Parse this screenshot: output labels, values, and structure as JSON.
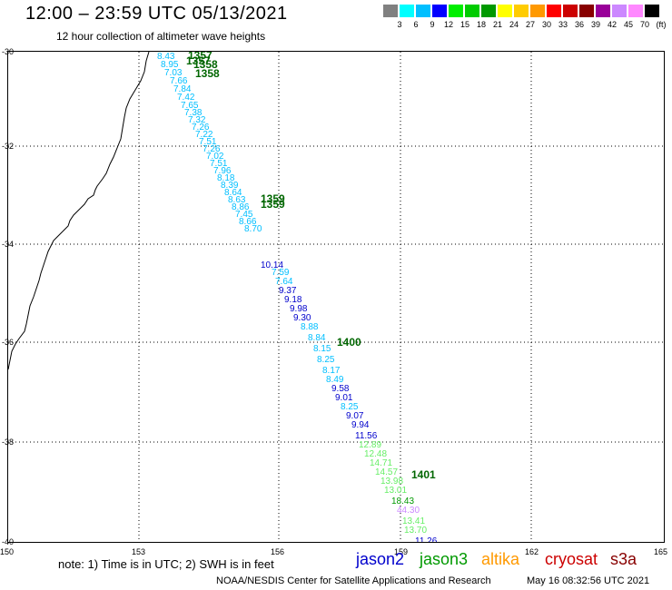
{
  "header": {
    "title": "12:00 – 23:59 UTC 05/13/2021",
    "subtitle": "12 hour collection of altimeter wave heights"
  },
  "legend": {
    "colors": [
      "#808080",
      "#00ffff",
      "#00bfff",
      "#0000ff",
      "#00ee00",
      "#00cc00",
      "#009900",
      "#ffff00",
      "#ffcc00",
      "#ff9900",
      "#ff0000",
      "#cc0000",
      "#880000",
      "#990099",
      "#cc88ff",
      "#ff88ff",
      "#000000"
    ],
    "labels": [
      "3",
      "6",
      "9",
      "12",
      "15",
      "18",
      "21",
      "24",
      "27",
      "30",
      "33",
      "36",
      "39",
      "42",
      "45",
      "70"
    ],
    "unit": "(ft)"
  },
  "map": {
    "lat_labels": [
      "-30",
      "-32",
      "-34",
      "-36",
      "-38",
      "-40"
    ],
    "lon_labels": [
      "150",
      "153",
      "156",
      "159",
      "162",
      "165"
    ]
  },
  "wave_obs": [
    {
      "t": "8.43",
      "c": "#00bfff"
    },
    {
      "t": "8.95",
      "c": "#00bfff"
    },
    {
      "t": "7.03",
      "c": "#00bfff"
    },
    {
      "t": "7.66",
      "c": "#00bfff"
    },
    {
      "t": "7.84",
      "c": "#00bfff"
    },
    {
      "t": "7.42",
      "c": "#00bfff"
    },
    {
      "t": "7.65",
      "c": "#00bfff"
    },
    {
      "t": "7.38",
      "c": "#00bfff"
    },
    {
      "t": "7.32",
      "c": "#00bfff"
    },
    {
      "t": "7.26",
      "c": "#00bfff"
    },
    {
      "t": "7.22",
      "c": "#00bfff"
    },
    {
      "t": "7.51",
      "c": "#00bfff"
    },
    {
      "t": "7.26",
      "c": "#00bfff"
    },
    {
      "t": "7.02",
      "c": "#00bfff"
    },
    {
      "t": "7.51",
      "c": "#00bfff"
    },
    {
      "t": "7.96",
      "c": "#00bfff"
    },
    {
      "t": "8.18",
      "c": "#00bfff"
    },
    {
      "t": "8.39",
      "c": "#00bfff"
    },
    {
      "t": "8.64",
      "c": "#00bfff"
    },
    {
      "t": "8.63",
      "c": "#00bfff"
    },
    {
      "t": "8.86",
      "c": "#00bfff"
    },
    {
      "t": "7.45",
      "c": "#00bfff"
    },
    {
      "t": "8.66",
      "c": "#00bfff"
    },
    {
      "t": "8.70",
      "c": "#00bfff"
    },
    {
      "t": "10.14",
      "c": "#0000cc"
    },
    {
      "t": "7.59",
      "c": "#00bfff"
    },
    {
      "t": "7.64",
      "c": "#00bfff"
    },
    {
      "t": "9.37",
      "c": "#0000cc"
    },
    {
      "t": "9.18",
      "c": "#0000cc"
    },
    {
      "t": "9.98",
      "c": "#0000cc"
    },
    {
      "t": "9.30",
      "c": "#0000cc"
    },
    {
      "t": "8.88",
      "c": "#00bfff"
    },
    {
      "t": "8.84",
      "c": "#00bfff"
    },
    {
      "t": "8.15",
      "c": "#00bfff"
    },
    {
      "t": "8.25",
      "c": "#00bfff"
    },
    {
      "t": "8.17",
      "c": "#00bfff"
    },
    {
      "t": "8.49",
      "c": "#00bfff"
    },
    {
      "t": "9.58",
      "c": "#0000cc"
    },
    {
      "t": "9.01",
      "c": "#0000cc"
    },
    {
      "t": "8.25",
      "c": "#00bfff"
    },
    {
      "t": "9.07",
      "c": "#0000cc"
    },
    {
      "t": "9.94",
      "c": "#0000cc"
    },
    {
      "t": "11.56",
      "c": "#0000cc"
    },
    {
      "t": "12.89",
      "c": "#66ee66"
    },
    {
      "t": "12.48",
      "c": "#66ee66"
    },
    {
      "t": "14.71",
      "c": "#66ee66"
    },
    {
      "t": "14.57",
      "c": "#66ee66"
    },
    {
      "t": "13.98",
      "c": "#66ee66"
    },
    {
      "t": "13.01",
      "c": "#66ee66"
    },
    {
      "t": "18.43",
      "c": "#009900"
    },
    {
      "t": "44.30",
      "c": "#cc88ff"
    },
    {
      "t": "13.41",
      "c": "#66ee66"
    },
    {
      "t": "13.70",
      "c": "#66ee66"
    },
    {
      "t": "11.26",
      "c": "#0000cc"
    }
  ],
  "time_labels": [
    {
      "t": "1357",
      "c": "#006600"
    },
    {
      "t": "1357",
      "c": "#006600"
    },
    {
      "t": "1358",
      "c": "#006600"
    },
    {
      "t": "1358",
      "c": "#006600"
    },
    {
      "t": "1359",
      "c": "#006600"
    },
    {
      "t": "1359",
      "c": "#006600"
    },
    {
      "t": "1400",
      "c": "#006600"
    },
    {
      "t": "1401",
      "c": "#006600"
    }
  ],
  "footer": {
    "note": "note: 1) Time is in UTC; 2) SWH is in feet",
    "satellites": [
      {
        "name": "jason2",
        "color": "#0000cc"
      },
      {
        "name": "jason3",
        "color": "#009900"
      },
      {
        "name": "altika",
        "color": "#ff9900"
      },
      {
        "name": "cryosat",
        "color": "#cc0000"
      },
      {
        "name": "s3a",
        "color": "#880000"
      }
    ],
    "credit": "NOAA/NESDIS Center for Satellite Applications and Research",
    "timestamp": "May 16 08:32:56 UTC 2021"
  }
}
